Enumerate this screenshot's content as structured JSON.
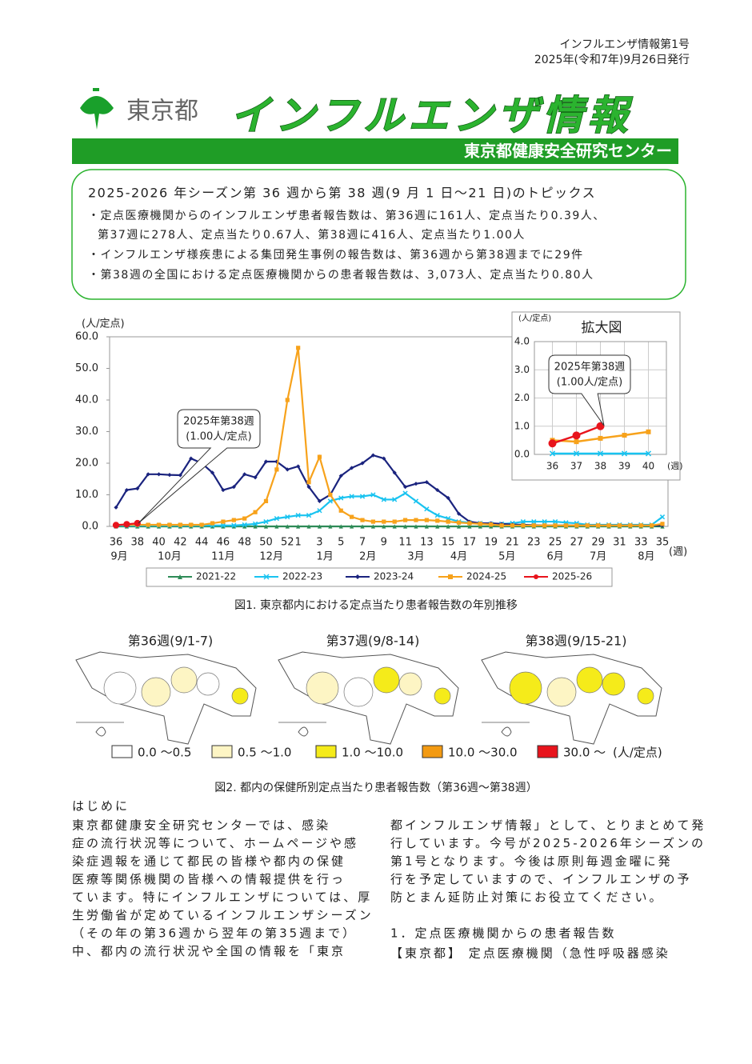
{
  "header": {
    "issue": "インフルエンザ情報第1号",
    "date": "2025年(令和7年)9月26日発行",
    "org": "東京都",
    "title": "インフルエンザ情報",
    "center": "東京都健康安全研究センター"
  },
  "topics": {
    "heading": "2025-2026 年シーズン第 36 週から第 38 週(9 月 1 日〜21 日)のトピックス",
    "items": [
      "・定点医療機関からのインフルエンザ患者報告数は、第36週に161人、定点当たり0.39人、",
      "第37週に278人、定点当たり0.67人、第38週に416人、定点当たり1.00人",
      "・インフルエンザ様疾患による集団発生事例の報告数は、第36週から第38週までに29件",
      "・第38週の全国における定点医療機関からの患者報告数は、3,073人、定点当たり0.80人"
    ]
  },
  "chart_data": [
    {
      "type": "line",
      "y_label": "(人/定点)",
      "x_unit": "(週)",
      "categories": [
        "36",
        null,
        "38",
        null,
        "40",
        null,
        "42",
        null,
        "44",
        null,
        "46",
        null,
        "48",
        null,
        "50",
        null,
        "52",
        "1",
        null,
        "3",
        null,
        "5",
        null,
        "7",
        null,
        "9",
        null,
        "11",
        null,
        "13",
        null,
        "15",
        null,
        "17",
        null,
        "19",
        null,
        "21",
        null,
        "23",
        null,
        "25",
        null,
        "27",
        null,
        "29",
        null,
        "31",
        null,
        "33",
        null,
        "35"
      ],
      "months": [
        "9月",
        "10月",
        "11月",
        "12月",
        "1月",
        "2月",
        "3月",
        "4月",
        "5月",
        "6月",
        "7月",
        "8月"
      ],
      "ylim": [
        0,
        60
      ],
      "yticks": [
        {
          "value": 0,
          "label": "0.0"
        },
        {
          "value": 10,
          "label": "10.0"
        },
        {
          "value": 20,
          "label": "20.0"
        },
        {
          "value": 30,
          "label": "30.0"
        },
        {
          "value": 40,
          "label": "40.0"
        },
        {
          "value": 50,
          "label": "50.0"
        },
        {
          "value": 60,
          "label": "60.0"
        }
      ],
      "series": [
        {
          "name": "2021-22",
          "color": "#2e8b57",
          "marker": "triangle",
          "values": [
            0,
            0,
            0,
            0,
            0,
            0,
            0,
            0,
            0,
            0,
            0,
            0,
            0,
            0,
            0,
            0,
            0,
            0,
            0,
            0,
            0,
            0,
            0,
            0,
            0,
            0,
            0,
            0,
            0,
            0,
            0,
            0,
            0,
            0,
            0,
            0,
            0,
            0,
            0,
            0,
            0,
            0,
            0,
            0,
            0,
            0,
            0,
            0,
            0,
            0,
            0,
            0
          ]
        },
        {
          "name": "2022-23",
          "color": "#19c3f0",
          "marker": "x",
          "values": [
            0.3,
            0.3,
            0.3,
            0.3,
            0.3,
            0.3,
            0.3,
            0.3,
            0.3,
            0.3,
            0.3,
            0.3,
            0.5,
            0.8,
            1.5,
            2.5,
            3,
            3.5,
            3.5,
            5,
            8,
            9,
            9.5,
            9.5,
            10,
            8.5,
            8.5,
            10.5,
            8,
            5.5,
            3.5,
            2.5,
            1.5,
            1.2,
            1,
            0.8,
            0.8,
            1,
            1.5,
            1.5,
            1.5,
            1.5,
            1.2,
            1,
            0.5,
            0.5,
            0.5,
            0.5,
            0.5,
            0.5,
            0.5,
            3
          ]
        },
        {
          "name": "2023-24",
          "color": "#1a237e",
          "marker": "diamond",
          "values": [
            6,
            11.5,
            12,
            16.5,
            16.5,
            16.3,
            16.2,
            21.5,
            20,
            17,
            11.5,
            12.5,
            16.5,
            15.5,
            20.5,
            20.5,
            18,
            19,
            12.5,
            8,
            10,
            16,
            18.5,
            20,
            22.5,
            21.5,
            17,
            12.5,
            13.5,
            14,
            11.5,
            9,
            4,
            1.5,
            1,
            1,
            0.8,
            0.6,
            0.5,
            0.4,
            0.3,
            0.3,
            0.3,
            0.3,
            0.3,
            0.3,
            0.3,
            0.3,
            0.3,
            0.3,
            0.3,
            0.3
          ]
        },
        {
          "name": "2024-25",
          "color": "#f7a21b",
          "marker": "square",
          "values": [
            0.5,
            0.5,
            0.5,
            0.5,
            0.5,
            0.5,
            0.5,
            0.5,
            0.5,
            1,
            1.5,
            2,
            2.5,
            4.5,
            8,
            18,
            40,
            56.5,
            14,
            22,
            10,
            5,
            3,
            2,
            1.5,
            1.5,
            1.5,
            2,
            2,
            2,
            1.8,
            1.5,
            1.2,
            1,
            0.8,
            0.6,
            0.3,
            0.3,
            0.3,
            0.3,
            0.3,
            0.3,
            0.3,
            0.3,
            0.3,
            0.3,
            0.3,
            0.3,
            0.3,
            0.3,
            0.3,
            0.8
          ]
        },
        {
          "name": "2025-26",
          "color": "#e8141c",
          "marker": "circle",
          "values": [
            0.39,
            0.67,
            1.0,
            null,
            null,
            null,
            null,
            null,
            null,
            null,
            null,
            null,
            null,
            null,
            null,
            null,
            null,
            null,
            null,
            null,
            null,
            null,
            null,
            null,
            null,
            null,
            null,
            null,
            null,
            null,
            null,
            null,
            null,
            null,
            null,
            null,
            null,
            null,
            null,
            null,
            null,
            null,
            null,
            null,
            null,
            null,
            null,
            null,
            null,
            null,
            null,
            null
          ]
        }
      ],
      "annotation": [
        "2025年第38週",
        "(1.00人/定点)"
      ]
    },
    {
      "type": "line",
      "title": "拡大図",
      "y_label": "(人/定点)",
      "x_unit": "(週)",
      "grid": true,
      "x": [
        36,
        37,
        38,
        39,
        40
      ],
      "xlim": [
        35.25,
        40.75
      ],
      "xticks": [
        36,
        37,
        38,
        39,
        40
      ],
      "ylim": [
        0,
        4
      ],
      "yticks": [
        {
          "value": 0,
          "label": "0.0"
        },
        {
          "value": 1,
          "label": "1.0"
        },
        {
          "value": 2,
          "label": "2.0"
        },
        {
          "value": 3,
          "label": "3.0"
        },
        {
          "value": 4,
          "label": "4.0"
        }
      ],
      "series": [
        {
          "color": "#19c3f0",
          "marker": "x",
          "values": [
            0.03,
            0.03,
            0.03,
            0.03,
            0.03
          ]
        },
        {
          "color": "#f7a21b",
          "marker": "square",
          "values": [
            0.5,
            0.45,
            0.57,
            0.68,
            0.8
          ]
        },
        {
          "color": "#e8141c",
          "marker": "circle",
          "values": [
            0.39,
            0.67,
            1.0,
            null,
            null
          ]
        }
      ],
      "annotation": [
        "2025年第38週",
        "(1.00人/定点)"
      ]
    }
  ],
  "figure1_caption": "図1. 東京都内における定点当たり患者報告数の年別推移",
  "maps": {
    "panels": [
      "第36週(9/1-7)",
      "第37週(9/8-14)",
      "第38週(9/15-21)"
    ],
    "legend": [
      {
        "label": "0.0 〜0.5",
        "color": "#ffffff"
      },
      {
        "label": "0.5 〜1.0",
        "color": "#fdf5c4"
      },
      {
        "label": "1.0 〜10.0",
        "color": "#f5eb1a"
      },
      {
        "label": "10.0 〜30.0",
        "color": "#f39a12"
      },
      {
        "label": "30.0 〜",
        "color": "#e8141c"
      }
    ],
    "unit": "(人/定点)",
    "caption": "図2. 都内の保健所別定点当たり患者報告数（第36週〜第38週）"
  },
  "body": {
    "heading": "はじめに",
    "left": [
      "東京都健康安全研究センターでは、感染",
      "症の流行状況等について、ホームページや感",
      "染症週報を通じて都民の皆様や都内の保健",
      "医療等関係機関の皆様への情報提供を行っ",
      "ています。特にインフルエンザについては、厚",
      "生労働省が定めているインフルエンザシーズン",
      "（その年の第36週から翌年の第35週まで）",
      "中、都内の流行状況や全国の情報を「東京"
    ],
    "right": [
      "都インフルエンザ情報」として、とりまとめて発",
      "行しています。今号が2025-2026年シーズンの",
      "第1号となります。今後は原則毎週金曜に発",
      "行を予定していますので、インフルエンザの予",
      "防とまん延防止対策にお役立てください。"
    ],
    "section_title": "1．定点医療機関からの患者報告数",
    "section_line": "【東京都】 定点医療機関（急性呼吸器感染"
  }
}
